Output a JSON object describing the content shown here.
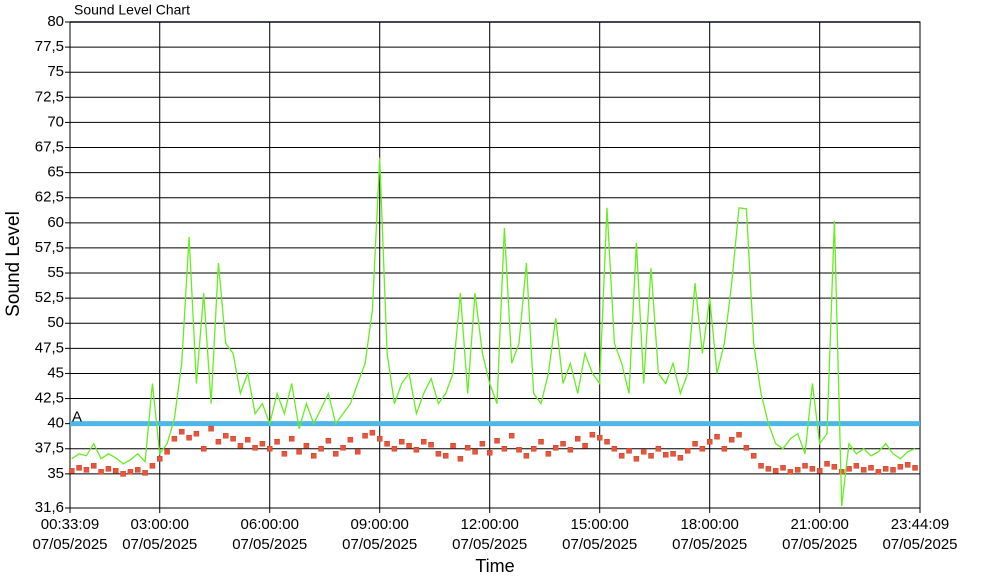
{
  "chart_data": {
    "type": "line",
    "title": "Sound Level Chart",
    "xlabel": "Time",
    "ylabel": "Sound Level",
    "date": "07/05/2025",
    "xlim": [
      "00:33:09",
      "23:44:09"
    ],
    "xticks": [
      "00:33:09",
      "03:00:00",
      "06:00:00",
      "09:00:00",
      "12:00:00",
      "15:00:00",
      "18:00:00",
      "21:00:00",
      "23:44:09"
    ],
    "ylim": [
      31.6,
      80
    ],
    "yticks": [
      {
        "value": 31.6,
        "label": "31,6"
      },
      35,
      {
        "value": 37.5,
        "label": "37,5"
      },
      40,
      {
        "value": 42.5,
        "label": "42,5"
      },
      45,
      {
        "value": 47.5,
        "label": "47,5"
      },
      50,
      {
        "value": 52.5,
        "label": "52,5"
      },
      55,
      {
        "value": 57.5,
        "label": "57,5"
      },
      60,
      {
        "value": 62.5,
        "label": "62,5"
      },
      65,
      {
        "value": 67.5,
        "label": "67,5"
      },
      70,
      {
        "value": 72.5,
        "label": "72,5"
      },
      75,
      {
        "value": 77.5,
        "label": "77,5"
      },
      80
    ],
    "grid": true,
    "x": [
      "00:36:00",
      "00:48:00",
      "01:00:00",
      "01:12:00",
      "01:24:00",
      "01:36:00",
      "01:48:00",
      "02:00:00",
      "02:12:00",
      "02:24:00",
      "02:36:00",
      "02:48:00",
      "03:00:00",
      "03:12:00",
      "03:24:00",
      "03:36:00",
      "03:48:00",
      "04:00:00",
      "04:12:00",
      "04:24:00",
      "04:36:00",
      "04:48:00",
      "05:00:00",
      "05:12:00",
      "05:24:00",
      "05:36:00",
      "05:48:00",
      "06:00:00",
      "06:12:00",
      "06:24:00",
      "06:36:00",
      "06:48:00",
      "07:00:00",
      "07:12:00",
      "07:24:00",
      "07:36:00",
      "07:48:00",
      "08:00:00",
      "08:12:00",
      "08:24:00",
      "08:36:00",
      "08:48:00",
      "09:00:00",
      "09:12:00",
      "09:24:00",
      "09:36:00",
      "09:48:00",
      "10:00:00",
      "10:12:00",
      "10:24:00",
      "10:36:00",
      "10:48:00",
      "11:00:00",
      "11:12:00",
      "11:24:00",
      "11:36:00",
      "11:48:00",
      "12:00:00",
      "12:12:00",
      "12:24:00",
      "12:36:00",
      "12:48:00",
      "13:00:00",
      "13:12:00",
      "13:24:00",
      "13:36:00",
      "13:48:00",
      "14:00:00",
      "14:12:00",
      "14:24:00",
      "14:36:00",
      "14:48:00",
      "15:00:00",
      "15:12:00",
      "15:24:00",
      "15:36:00",
      "15:48:00",
      "16:00:00",
      "16:12:00",
      "16:24:00",
      "16:36:00",
      "16:48:00",
      "17:00:00",
      "17:12:00",
      "17:24:00",
      "17:36:00",
      "17:48:00",
      "18:00:00",
      "18:12:00",
      "18:24:00",
      "18:36:00",
      "18:48:00",
      "19:00:00",
      "19:12:00",
      "19:24:00",
      "19:36:00",
      "19:48:00",
      "20:00:00",
      "20:12:00",
      "20:24:00",
      "20:36:00",
      "20:48:00",
      "21:00:00",
      "21:12:00",
      "21:24:00",
      "21:36:00",
      "21:48:00",
      "22:00:00",
      "22:12:00",
      "22:24:00",
      "22:36:00",
      "22:48:00",
      "23:00:00",
      "23:12:00",
      "23:24:00",
      "23:36:00"
    ],
    "series": [
      {
        "color": "#66ee22",
        "style": "line",
        "values": [
          36.5,
          37,
          36.8,
          38,
          36.5,
          37,
          36.6,
          36,
          36.4,
          37,
          36.2,
          44,
          37,
          38,
          40.5,
          46,
          58.6,
          44,
          53,
          42,
          56,
          48,
          47,
          43,
          45,
          41,
          42,
          40,
          43,
          41,
          44,
          39.5,
          42,
          40,
          41.5,
          43,
          40,
          41,
          42,
          44,
          46,
          51.3,
          66.5,
          47,
          42,
          44,
          45,
          41,
          43,
          44.5,
          42,
          43,
          45,
          53,
          43,
          53,
          47,
          44,
          42,
          59.5,
          46,
          48,
          56,
          43,
          42,
          45,
          50.5,
          44,
          46,
          43,
          47,
          45,
          44,
          61.5,
          48,
          46,
          43,
          58,
          44,
          55.5,
          45,
          44,
          46,
          43,
          45,
          54,
          47,
          52.5,
          45,
          48,
          54,
          61.5,
          61.4,
          48,
          43,
          40,
          38,
          37.5,
          38.5,
          39,
          37,
          44,
          38,
          39,
          60.2,
          31.8,
          38,
          37,
          37.5,
          36.8,
          37.2,
          38,
          37,
          36.5,
          37.2,
          37.5
        ]
      },
      {
        "color": "#e8553a",
        "style": "markers",
        "values": [
          35.3,
          35.6,
          35.4,
          35.8,
          35.2,
          35.5,
          35.3,
          35.0,
          35.2,
          35.4,
          35.1,
          35.8,
          36.5,
          37.2,
          38.5,
          39.2,
          38.6,
          39,
          37.5,
          39.5,
          38.2,
          38.8,
          38.5,
          37.8,
          38.4,
          37.6,
          38,
          37.5,
          38.2,
          37,
          38.5,
          37.2,
          37.8,
          36.8,
          37.5,
          38.3,
          37,
          37.6,
          38.4,
          37.2,
          38.8,
          39.1,
          38.5,
          38,
          37.5,
          38.2,
          37.8,
          37.4,
          38.2,
          37.9,
          37,
          36.8,
          37.8,
          36.5,
          37.6,
          37.2,
          38,
          37.1,
          38.3,
          37.5,
          38.8,
          37.4,
          36.8,
          37.5,
          38.2,
          37,
          37.6,
          38,
          37.4,
          38.5,
          37.8,
          38.9,
          38.6,
          38.2,
          37.5,
          36.8,
          37.3,
          36.5,
          37.2,
          36.8,
          37.5,
          36.9,
          37,
          36.6,
          37.3,
          38,
          37.5,
          38.2,
          38.7,
          37.5,
          38.4,
          38.9,
          37.6,
          36.8,
          35.8,
          35.5,
          35.3,
          35.6,
          35.2,
          35.4,
          35.8,
          35.5,
          35.3,
          36,
          35.7,
          35.2,
          35.5,
          35.8,
          35.4,
          35.6,
          35.2,
          35.5,
          35.4,
          35.7,
          35.9,
          35.6
        ]
      }
    ],
    "annotations": [
      {
        "label": "A",
        "value": 40,
        "color": "#4db8e8"
      }
    ]
  }
}
